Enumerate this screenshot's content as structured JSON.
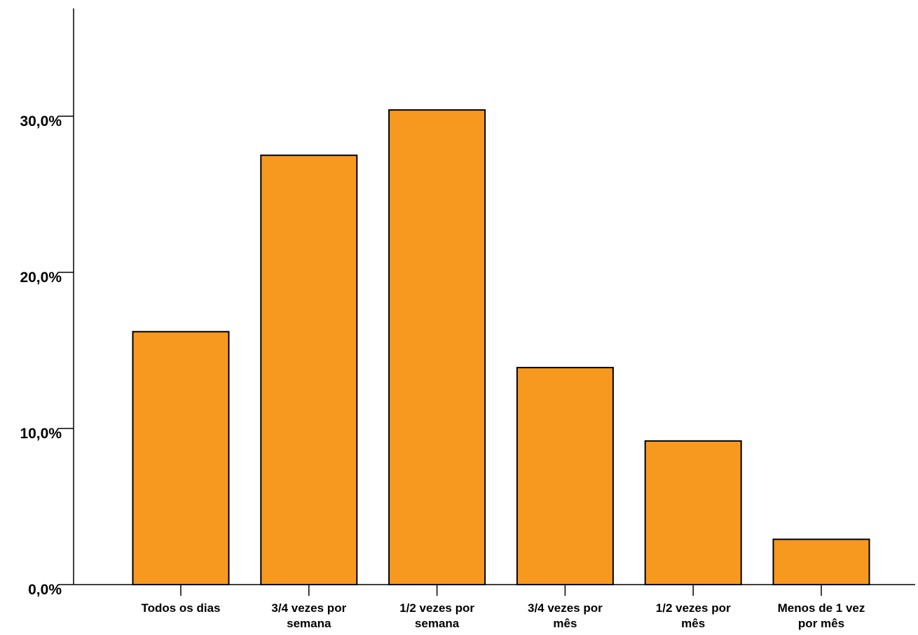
{
  "chart_data": {
    "type": "bar",
    "categories": [
      [
        "Todos os dias"
      ],
      [
        "3/4 vezes por",
        "semana"
      ],
      [
        "1/2 vezes por",
        "semana"
      ],
      [
        "3/4 vezes por",
        "mês"
      ],
      [
        "1/2 vezes por",
        "mês"
      ],
      [
        "Menos de 1 vez",
        "por mês"
      ]
    ],
    "values": [
      16.2,
      27.5,
      30.4,
      13.9,
      9.2,
      2.9
    ],
    "yticks": [
      {
        "value": 0,
        "label": "0,0%"
      },
      {
        "value": 10,
        "label": "10,0%"
      },
      {
        "value": 20,
        "label": "20,0%"
      },
      {
        "value": 30,
        "label": "30,0%"
      }
    ],
    "ylim": [
      0,
      37
    ],
    "title": "",
    "xlabel": "",
    "ylabel": "",
    "bar_color": "#F7991F",
    "grid": false,
    "legend": "none"
  }
}
